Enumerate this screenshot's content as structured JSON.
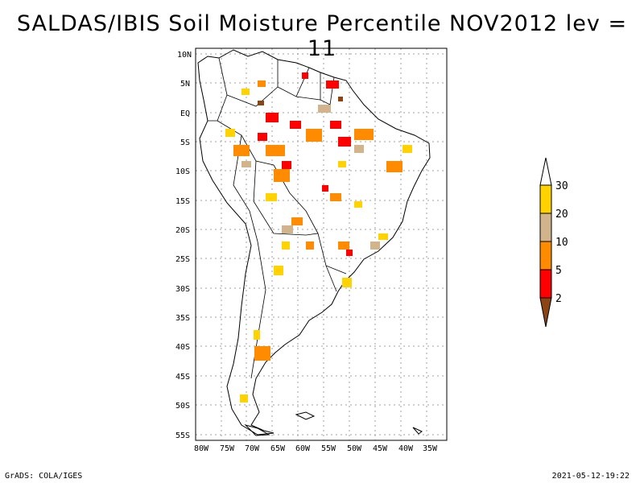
{
  "title": "SALDAS/IBIS Soil Moisture Percentile NOV2012 lev = 11",
  "footer": {
    "left": "GrADS: COLA/IGES",
    "right": "2021-05-12-19:22"
  },
  "map": {
    "lat_labels": [
      "10N",
      "5N",
      "EQ",
      "5S",
      "10S",
      "15S",
      "20S",
      "25S",
      "30S",
      "35S",
      "40S",
      "45S",
      "50S",
      "55S"
    ],
    "lon_labels": [
      "80W",
      "75W",
      "70W",
      "65W",
      "60W",
      "55W",
      "50W",
      "45W",
      "40W",
      "35W"
    ]
  },
  "legend": {
    "labels": [
      "30",
      "20",
      "10",
      "5",
      "2"
    ],
    "colors": {
      "above": "#ffffff",
      "c20_30": "#ffd200",
      "c10_20": "#d2b48c",
      "c5_10": "#ff8c00",
      "c2_5": "#ff0000",
      "below": "#8b4513"
    }
  }
}
